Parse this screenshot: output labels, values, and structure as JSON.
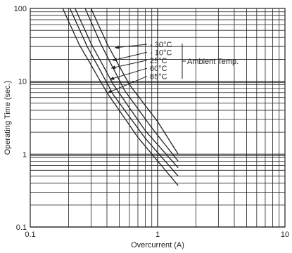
{
  "chart_data": {
    "type": "line",
    "xlabel": "Overcurrent (A)",
    "ylabel": "Operating Time (sec.)",
    "x_scale": "log",
    "y_scale": "log",
    "xlim": [
      0.1,
      10
    ],
    "ylim": [
      0.1,
      100
    ],
    "grid": true,
    "x_ticks": [
      {
        "value": 0.1,
        "label": "0.1"
      },
      {
        "value": 1,
        "label": "1"
      },
      {
        "value": 10,
        "label": "10"
      }
    ],
    "y_ticks": [
      {
        "value": 100,
        "label": "100"
      },
      {
        "value": 10,
        "label": "10"
      },
      {
        "value": 1,
        "label": "1"
      },
      {
        "value": 0.1,
        "label": "0.1"
      }
    ],
    "annotation": "Ambient Temp.",
    "series": [
      {
        "name": "- 30°C",
        "x": [
          0.3,
          0.4,
          0.6,
          1.0,
          1.45
        ],
        "y": [
          100,
          33,
          9,
          2.8,
          1.0
        ]
      },
      {
        "name": "- 10°C",
        "x": [
          0.27,
          0.36,
          0.55,
          0.9,
          1.45
        ],
        "y": [
          100,
          32,
          7.5,
          2.3,
          0.8
        ]
      },
      {
        "name": "25°C",
        "x": [
          0.225,
          0.3,
          0.45,
          0.8,
          1.45
        ],
        "y": [
          100,
          33,
          9,
          2.1,
          0.65
        ]
      },
      {
        "name": "60°C",
        "x": [
          0.205,
          0.28,
          0.45,
          0.8,
          1.45
        ],
        "y": [
          100,
          30,
          6.5,
          1.65,
          0.5
        ]
      },
      {
        "name": "85°C",
        "x": [
          0.18,
          0.24,
          0.4,
          0.7,
          1.45
        ],
        "y": [
          100,
          33,
          7,
          1.7,
          0.37
        ]
      }
    ]
  }
}
